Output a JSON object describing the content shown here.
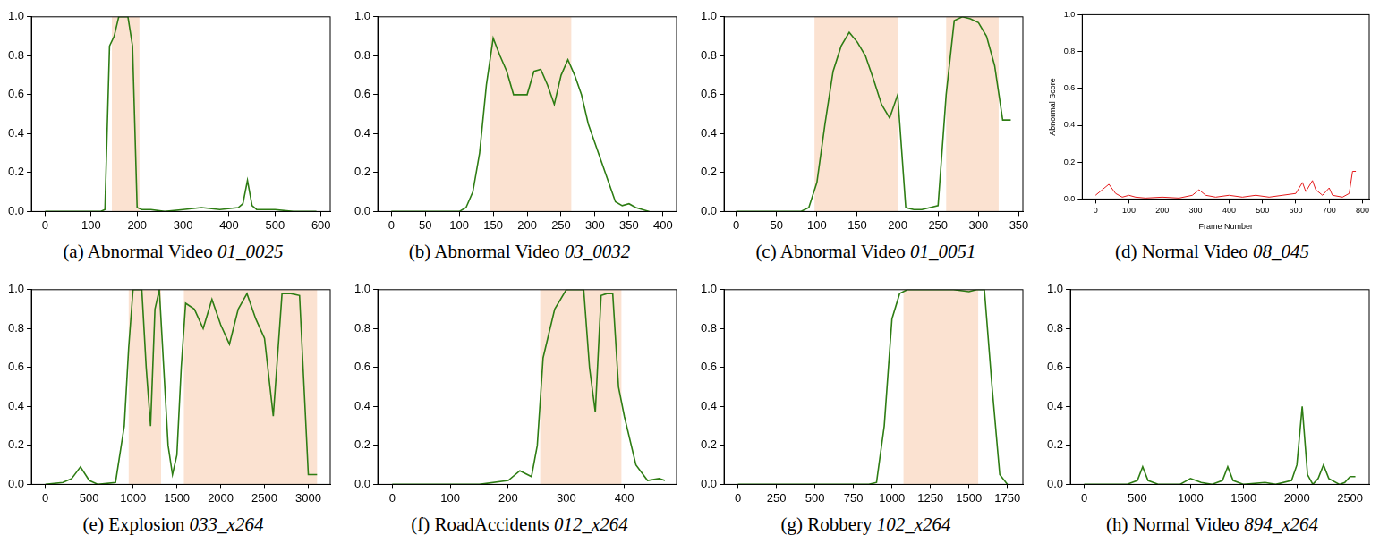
{
  "chart_data": [
    {
      "type": "line",
      "caption": "(a) Abnormal Video",
      "video": "01_0025",
      "color": "#2e7d14",
      "grid": false,
      "x": [
        0,
        20,
        40,
        60,
        80,
        100,
        120,
        130,
        140,
        150,
        160,
        170,
        180,
        190,
        200,
        210,
        230,
        260,
        300,
        340,
        380,
        420,
        430,
        440,
        450,
        460,
        500,
        540,
        580,
        590
      ],
      "values": [
        0,
        0,
        0,
        0,
        0,
        0,
        0,
        0.01,
        0.85,
        0.9,
        1.0,
        1.0,
        1.0,
        0.85,
        0.02,
        0.01,
        0.01,
        0.0,
        0.01,
        0.02,
        0.01,
        0.02,
        0.04,
        0.16,
        0.03,
        0.01,
        0.01,
        0.0,
        0.0,
        0.0
      ],
      "highlights": [
        [
          145,
          205
        ]
      ],
      "xlim": [
        -30,
        620
      ],
      "xticks": [
        0,
        100,
        200,
        300,
        400,
        500,
        600
      ],
      "ylim": [
        0,
        1
      ],
      "yticks": [
        {
          "value": 0,
          "label": "0.0"
        },
        {
          "value": 0.2,
          "label": "0.2"
        },
        {
          "value": 0.4,
          "label": "0.4"
        },
        {
          "value": 0.6,
          "label": "0.6"
        },
        {
          "value": 0.8,
          "label": "0.8"
        },
        {
          "value": 1,
          "label": "1.0"
        }
      ]
    },
    {
      "type": "line",
      "caption": "(b) Abnormal Video",
      "video": "03_0032",
      "color": "#2e7d14",
      "grid": false,
      "x": [
        0,
        50,
        100,
        110,
        120,
        130,
        140,
        150,
        160,
        170,
        180,
        190,
        200,
        210,
        220,
        230,
        240,
        250,
        260,
        270,
        280,
        290,
        300,
        310,
        320,
        330,
        340,
        350,
        360,
        370,
        380
      ],
      "values": [
        0,
        0,
        0,
        0.02,
        0.1,
        0.3,
        0.65,
        0.89,
        0.8,
        0.72,
        0.6,
        0.6,
        0.6,
        0.72,
        0.73,
        0.65,
        0.55,
        0.7,
        0.78,
        0.7,
        0.6,
        0.45,
        0.35,
        0.25,
        0.15,
        0.05,
        0.03,
        0.04,
        0.02,
        0.01,
        0
      ],
      "highlights": [
        [
          145,
          265
        ]
      ],
      "xlim": [
        -20,
        420
      ],
      "xticks": [
        0,
        50,
        100,
        150,
        200,
        250,
        300,
        350,
        400
      ],
      "ylim": [
        0,
        1
      ],
      "yticks": [
        {
          "value": 0,
          "label": "0.0"
        },
        {
          "value": 0.2,
          "label": "0.2"
        },
        {
          "value": 0.4,
          "label": "0.4"
        },
        {
          "value": 0.6,
          "label": "0.6"
        },
        {
          "value": 0.8,
          "label": "0.8"
        },
        {
          "value": 1,
          "label": "1.0"
        }
      ]
    },
    {
      "type": "line",
      "caption": "(c) Abnormal Video",
      "video": "01_0051",
      "color": "#2e7d14",
      "grid": false,
      "x": [
        0,
        40,
        80,
        90,
        100,
        110,
        120,
        130,
        140,
        150,
        160,
        170,
        180,
        190,
        200,
        210,
        220,
        230,
        240,
        250,
        260,
        270,
        280,
        290,
        300,
        310,
        320,
        330,
        340
      ],
      "values": [
        0,
        0,
        0,
        0.02,
        0.15,
        0.45,
        0.72,
        0.85,
        0.92,
        0.87,
        0.8,
        0.68,
        0.55,
        0.48,
        0.6,
        0.02,
        0.01,
        0.01,
        0.02,
        0.03,
        0.6,
        0.98,
        1.0,
        0.99,
        0.97,
        0.9,
        0.75,
        0.47,
        0.47
      ],
      "highlights": [
        [
          97,
          200
        ],
        [
          260,
          325
        ]
      ],
      "xlim": [
        -15,
        355
      ],
      "xticks": [
        0,
        50,
        100,
        150,
        200,
        250,
        300,
        350
      ],
      "ylim": [
        0,
        1
      ],
      "yticks": [
        {
          "value": 0,
          "label": "0.0"
        },
        {
          "value": 0.2,
          "label": "0.2"
        },
        {
          "value": 0.4,
          "label": "0.4"
        },
        {
          "value": 0.6,
          "label": "0.6"
        },
        {
          "value": 0.8,
          "label": "0.8"
        },
        {
          "value": 1,
          "label": "1.0"
        }
      ]
    },
    {
      "type": "line",
      "caption": "(d) Normal Video",
      "video": "08_045",
      "color": "#e41a1c",
      "grid": false,
      "x_label": "Frame Number",
      "y_label": "Abnormal Score",
      "x": [
        0,
        20,
        40,
        60,
        80,
        100,
        120,
        150,
        200,
        250,
        290,
        310,
        330,
        360,
        400,
        440,
        480,
        520,
        560,
        600,
        620,
        630,
        650,
        660,
        680,
        700,
        710,
        740,
        760,
        770,
        780
      ],
      "values": [
        0.02,
        0.05,
        0.08,
        0.03,
        0.01,
        0.02,
        0.01,
        0.005,
        0.01,
        0.005,
        0.02,
        0.05,
        0.02,
        0.01,
        0.02,
        0.01,
        0.02,
        0.01,
        0.02,
        0.03,
        0.09,
        0.04,
        0.1,
        0.05,
        0.02,
        0.06,
        0.02,
        0.01,
        0.03,
        0.15,
        0.15
      ],
      "highlights": [],
      "xlim": [
        -40,
        820
      ],
      "xticks": [
        0,
        100,
        200,
        300,
        400,
        500,
        600,
        700,
        800
      ],
      "ylim": [
        0,
        1
      ],
      "yticks": [
        {
          "value": 0,
          "label": "0.0"
        },
        {
          "value": 0.2,
          "label": "0.2"
        },
        {
          "value": 0.4,
          "label": "0.4"
        },
        {
          "value": 0.6,
          "label": "0.6"
        },
        {
          "value": 0.8,
          "label": "0.8"
        },
        {
          "value": 1,
          "label": "1.0"
        }
      ]
    },
    {
      "type": "line",
      "caption": "(e) Explosion",
      "video": "033_x264",
      "color": "#2e7d14",
      "grid": false,
      "x": [
        0,
        200,
        300,
        400,
        500,
        600,
        800,
        900,
        950,
        1000,
        1100,
        1150,
        1200,
        1250,
        1300,
        1350,
        1400,
        1450,
        1500,
        1550,
        1600,
        1700,
        1800,
        1900,
        2000,
        2100,
        2200,
        2300,
        2400,
        2500,
        2600,
        2700,
        2800,
        2900,
        3000,
        3100
      ],
      "values": [
        0,
        0.01,
        0.03,
        0.09,
        0.02,
        0,
        0.01,
        0.3,
        0.7,
        1.0,
        1.0,
        0.6,
        0.3,
        0.9,
        1.0,
        0.6,
        0.2,
        0.05,
        0.15,
        0.6,
        0.93,
        0.9,
        0.8,
        0.95,
        0.82,
        0.72,
        0.9,
        0.98,
        0.85,
        0.75,
        0.35,
        0.98,
        0.98,
        0.97,
        0.05,
        0.05
      ],
      "highlights": [
        [
          950,
          1320
        ],
        [
          1580,
          3100
        ]
      ],
      "xlim": [
        -160,
        3250
      ],
      "xticks": [
        0,
        500,
        1000,
        1500,
        2000,
        2500,
        3000
      ],
      "ylim": [
        0,
        1
      ],
      "yticks": [
        {
          "value": 0,
          "label": "0.0"
        },
        {
          "value": 0.2,
          "label": "0.2"
        },
        {
          "value": 0.4,
          "label": "0.4"
        },
        {
          "value": 0.6,
          "label": "0.6"
        },
        {
          "value": 0.8,
          "label": "0.8"
        },
        {
          "value": 1,
          "label": "1.0"
        }
      ]
    },
    {
      "type": "line",
      "caption": "(f) RoadAccidents",
      "video": "012_x264",
      "color": "#2e7d14",
      "grid": false,
      "x": [
        0,
        50,
        100,
        150,
        200,
        220,
        240,
        250,
        260,
        280,
        300,
        330,
        340,
        350,
        360,
        370,
        380,
        390,
        400,
        420,
        440,
        460,
        470
      ],
      "values": [
        0,
        0,
        0,
        0,
        0.02,
        0.07,
        0.04,
        0.2,
        0.65,
        0.9,
        1.0,
        1.0,
        0.6,
        0.37,
        0.97,
        0.98,
        0.98,
        0.5,
        0.35,
        0.1,
        0.02,
        0.03,
        0.02
      ],
      "highlights": [
        [
          255,
          395
        ]
      ],
      "xlim": [
        -25,
        490
      ],
      "xticks": [
        0,
        100,
        200,
        300,
        400
      ],
      "ylim": [
        0,
        1
      ],
      "yticks": [
        {
          "value": 0,
          "label": "0.0"
        },
        {
          "value": 0.2,
          "label": "0.2"
        },
        {
          "value": 0.4,
          "label": "0.4"
        },
        {
          "value": 0.6,
          "label": "0.6"
        },
        {
          "value": 0.8,
          "label": "0.8"
        },
        {
          "value": 1,
          "label": "1.0"
        }
      ]
    },
    {
      "type": "line",
      "caption": "(g) Robbery",
      "video": "102_x264",
      "color": "#2e7d14",
      "grid": false,
      "x": [
        0,
        500,
        850,
        900,
        950,
        1000,
        1050,
        1100,
        1200,
        1300,
        1400,
        1500,
        1550,
        1600,
        1650,
        1700,
        1750
      ],
      "values": [
        0,
        0,
        0,
        0.01,
        0.3,
        0.85,
        0.98,
        1.0,
        1.0,
        1.0,
        1.0,
        0.99,
        1.0,
        1.0,
        0.5,
        0.05,
        0.0
      ],
      "highlights": [
        [
          1075,
          1560
        ]
      ],
      "xlim": [
        -90,
        1850
      ],
      "xticks": [
        0,
        250,
        500,
        750,
        1000,
        1250,
        1500,
        1750
      ],
      "ylim": [
        0,
        1
      ],
      "yticks": [
        {
          "value": 0,
          "label": "0.0"
        },
        {
          "value": 0.2,
          "label": "0.2"
        },
        {
          "value": 0.4,
          "label": "0.4"
        },
        {
          "value": 0.6,
          "label": "0.6"
        },
        {
          "value": 0.8,
          "label": "0.8"
        },
        {
          "value": 1,
          "label": "1.0"
        }
      ]
    },
    {
      "type": "line",
      "caption": "(h) Normal Video",
      "video": "894_x264",
      "color": "#2e7d14",
      "grid": false,
      "x": [
        0,
        400,
        500,
        550,
        600,
        700,
        900,
        1000,
        1100,
        1200,
        1300,
        1350,
        1400,
        1500,
        1700,
        1800,
        1950,
        2000,
        2050,
        2100,
        2150,
        2200,
        2250,
        2300,
        2400,
        2450,
        2500,
        2550
      ],
      "values": [
        0,
        0,
        0.02,
        0.09,
        0.02,
        0,
        0,
        0.03,
        0.01,
        0,
        0.02,
        0.09,
        0.02,
        0,
        0.01,
        0,
        0.02,
        0.1,
        0.4,
        0.05,
        0,
        0.03,
        0.1,
        0.03,
        0,
        0.01,
        0.04,
        0.04
      ],
      "highlights": [],
      "xlim": [
        -130,
        2680
      ],
      "xticks": [
        0,
        500,
        1000,
        1500,
        2000,
        2500
      ],
      "ylim": [
        0,
        1
      ],
      "yticks": [
        {
          "value": 0,
          "label": "0.0"
        },
        {
          "value": 0.2,
          "label": "0.2"
        },
        {
          "value": 0.4,
          "label": "0.4"
        },
        {
          "value": 0.6,
          "label": "0.6"
        },
        {
          "value": 0.8,
          "label": "0.8"
        },
        {
          "value": 1,
          "label": "1.0"
        }
      ]
    }
  ]
}
